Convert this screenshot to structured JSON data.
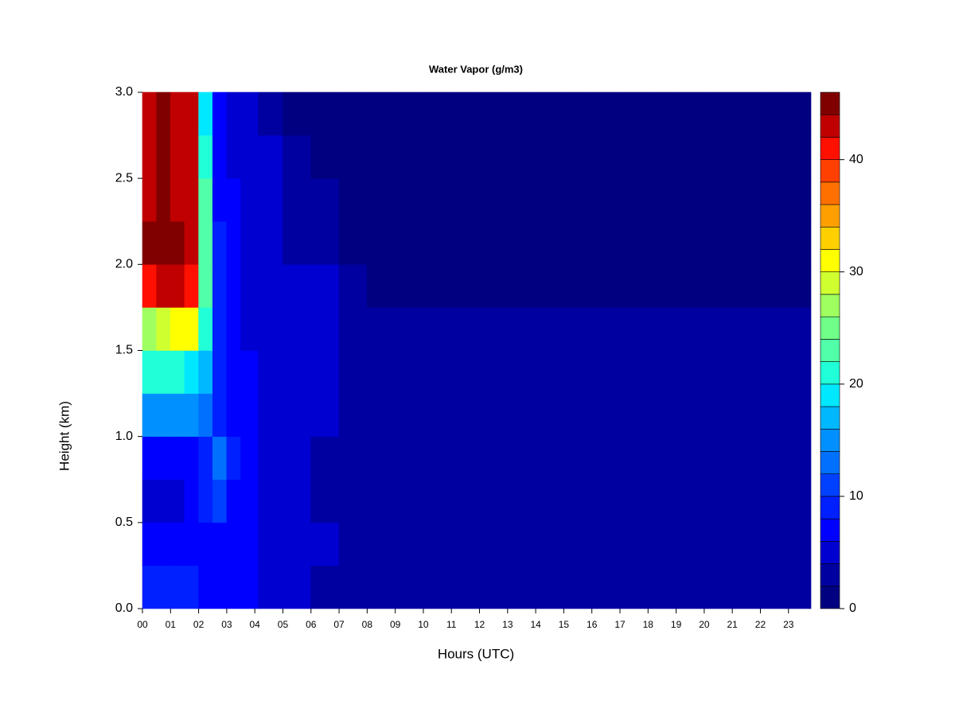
{
  "chart_data": {
    "type": "contour",
    "title": "Water Vapor (g/m3)",
    "xlabel": "Hours (UTC)",
    "ylabel": "Height (km)",
    "xlim": [
      0,
      23.8
    ],
    "xticks": [
      {
        "value": 0,
        "label": "00"
      },
      {
        "value": 1,
        "label": "01"
      },
      {
        "value": 2,
        "label": "02"
      },
      {
        "value": 3,
        "label": "03"
      },
      {
        "value": 4,
        "label": "04"
      },
      {
        "value": 5,
        "label": "05"
      },
      {
        "value": 6,
        "label": "06"
      },
      {
        "value": 7,
        "label": "07"
      },
      {
        "value": 8,
        "label": "08"
      },
      {
        "value": 9,
        "label": "09"
      },
      10,
      11,
      12,
      13,
      14,
      15,
      16,
      17,
      18,
      19,
      20,
      21,
      22,
      23
    ],
    "ylim": [
      0,
      3
    ],
    "yticks": [
      {
        "value": 0,
        "label": "0.0"
      },
      0.5,
      {
        "value": 1,
        "label": "1.0"
      },
      1.5,
      {
        "value": 2,
        "label": "2.0"
      },
      2.5,
      {
        "value": 3,
        "label": "3.0"
      }
    ],
    "zlim": [
      0,
      46
    ],
    "zticks": [
      0,
      10,
      20,
      30,
      40
    ],
    "levels": [
      0,
      2,
      4,
      6,
      8,
      10,
      12,
      14,
      16,
      18,
      20,
      22,
      24,
      26,
      28,
      30,
      32,
      34,
      36,
      38,
      40,
      42,
      44,
      46
    ],
    "colors": [
      "#000080",
      "#0000a0",
      "#0000d0",
      "#0000ff",
      "#0020ff",
      "#0040ff",
      "#0070ff",
      "#0090ff",
      "#00b8ff",
      "#00e8ff",
      "#20ffd8",
      "#50ffa8",
      "#70ff88",
      "#a0ff60",
      "#d0ff30",
      "#ffff00",
      "#ffd000",
      "#ffa000",
      "#ff7000",
      "#ff4000",
      "#ff1000",
      "#c00000",
      "#800000"
    ],
    "x": [
      0.25,
      0.75,
      1.25,
      1.75,
      2.25,
      2.75,
      3.25,
      3.75,
      4.5,
      5.5,
      6.5,
      7.5,
      8.5,
      9.5,
      10.5,
      11.5,
      12.5,
      13.5,
      14.5,
      15.5,
      16.5,
      17.5,
      18.5,
      19.5,
      20.5,
      21.5,
      22.5,
      23.5
    ],
    "y": [
      0.125,
      0.375,
      0.625,
      0.875,
      1.125,
      1.375,
      1.625,
      1.875,
      2.125,
      2.375,
      2.625,
      2.875
    ],
    "z": [
      [
        9,
        9,
        8,
        8,
        7,
        7,
        6,
        6,
        5,
        4,
        3,
        3,
        3,
        3,
        3,
        3,
        3,
        3,
        3,
        3,
        3,
        3,
        2,
        2,
        2,
        2,
        2,
        3
      ],
      [
        7,
        6,
        6,
        6,
        7,
        7,
        6,
        6,
        5,
        4,
        4,
        3,
        3,
        3,
        3,
        3,
        3,
        3,
        3,
        3,
        3,
        3,
        3,
        3,
        3,
        3,
        3,
        3
      ],
      [
        5,
        5,
        5,
        6,
        8,
        11,
        7,
        6,
        5,
        4,
        3,
        3,
        3,
        3,
        3,
        3,
        3,
        3,
        3,
        3,
        3,
        3,
        3,
        2,
        3,
        3,
        3,
        3
      ],
      [
        7,
        7,
        7,
        7,
        9,
        12,
        8,
        6,
        5,
        4,
        3,
        3,
        3,
        3,
        3,
        3,
        3,
        3,
        3,
        3,
        3,
        3,
        3,
        3,
        3,
        3,
        3,
        3
      ],
      [
        15,
        15,
        15,
        15,
        12,
        9,
        7,
        6,
        5,
        5,
        4,
        3,
        3,
        3,
        3,
        3,
        3,
        3,
        3,
        3,
        3,
        3,
        3,
        3,
        3,
        3,
        2,
        2
      ],
      [
        20,
        20,
        20,
        19,
        16,
        9,
        7,
        6,
        5,
        5,
        4,
        3,
        3,
        3,
        3,
        3,
        3,
        3,
        3,
        3,
        3,
        3,
        2,
        2,
        2,
        2,
        2,
        2
      ],
      [
        26,
        28,
        30,
        30,
        20,
        9,
        6,
        5,
        5,
        4,
        4,
        3,
        2,
        2,
        2,
        3,
        3,
        3,
        3,
        2,
        2,
        2,
        2,
        2,
        2,
        2,
        2,
        2
      ],
      [
        40,
        42,
        42,
        40,
        22,
        8,
        6,
        5,
        4,
        4,
        4,
        3,
        1,
        1,
        1,
        1,
        1,
        1,
        1,
        1,
        1,
        1,
        1,
        1,
        1,
        1,
        1,
        1
      ],
      [
        44,
        45,
        44,
        42,
        22,
        8,
        6,
        5,
        4,
        3,
        3,
        1,
        1,
        1,
        1,
        1,
        1,
        1,
        1,
        1,
        1,
        1,
        1,
        1,
        1,
        1,
        1,
        1
      ],
      [
        43,
        44,
        43,
        42,
        22,
        7,
        6,
        5,
        4,
        3,
        2,
        1,
        1,
        1,
        1,
        1,
        1,
        1,
        1,
        1,
        1,
        1,
        1,
        1,
        1,
        1,
        1,
        1
      ],
      [
        43,
        44,
        43,
        42,
        20,
        7,
        5,
        5,
        4,
        2,
        1,
        1,
        1,
        1,
        1,
        1,
        1,
        1,
        1,
        1,
        1,
        1,
        1,
        1,
        1,
        1,
        1,
        1
      ],
      [
        43,
        44,
        43,
        42,
        18,
        7,
        5,
        5,
        3,
        1,
        1,
        1,
        1,
        1,
        1,
        1,
        1,
        1,
        1,
        1,
        1,
        1,
        1,
        1,
        1,
        1,
        1,
        1
      ]
    ]
  }
}
